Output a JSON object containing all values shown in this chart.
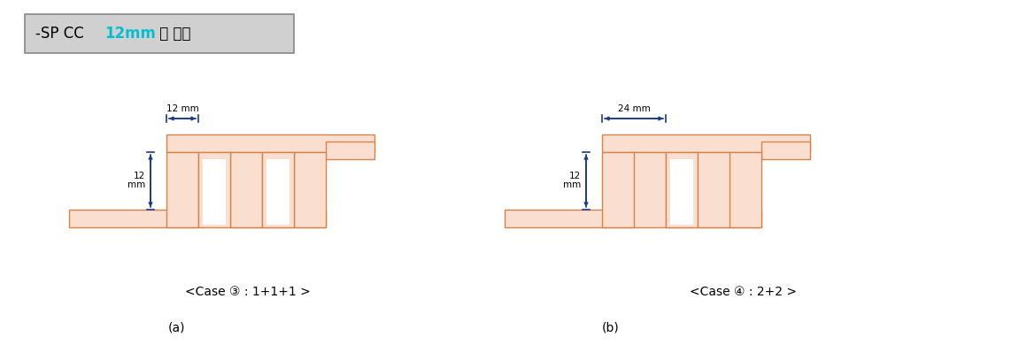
{
  "bg_color": "#ffffff",
  "fill_color": "#faded0",
  "edge_color": "#d4844a",
  "dim_color": "#1a3a8a",
  "label_a": "(a)",
  "label_b": "(b)",
  "case3_text": "<Case ③ : 1+1+1 >",
  "case4_text": "<Case ④ : 2+2 >",
  "dim_12mm_horiz": "12 mm",
  "dim_12mm_vert": "12\nmm",
  "dim_24mm_horiz": "24 mm",
  "title_black1": "-SP CC ",
  "title_cyan": "12mm",
  "title_black2": " 폭 도체"
}
